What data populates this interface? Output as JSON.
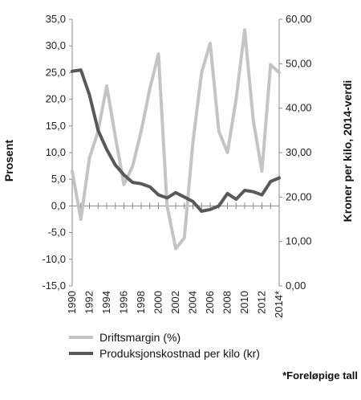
{
  "chart_data": {
    "type": "line",
    "title": "",
    "x": [
      "1990",
      "1991",
      "1992",
      "1993",
      "1994",
      "1995",
      "1996",
      "1997",
      "1998",
      "1999",
      "2000",
      "2001",
      "2002",
      "2003",
      "2004",
      "2005",
      "2006",
      "2007",
      "2008",
      "2009",
      "2010",
      "2011",
      "2012",
      "2013",
      "2014*"
    ],
    "x_tick_labels": [
      "1990",
      "1992",
      "1994",
      "1996",
      "1998",
      "2000",
      "2002",
      "2004",
      "2006",
      "2008",
      "2010",
      "2012",
      "2014*"
    ],
    "y_left": {
      "label": "Prosent",
      "lim": [
        -15,
        35
      ],
      "ticks": [
        "-15,0",
        "-10,0",
        "-5,0",
        "0,0",
        "5,0",
        "10,0",
        "15,0",
        "20,0",
        "25,0",
        "30,0",
        "35,0"
      ]
    },
    "y_right": {
      "label": "Kroner per kilo, 2014-verdi",
      "lim": [
        0,
        60
      ],
      "ticks": [
        "0,00",
        "10,00",
        "20,00",
        "30,00",
        "40,00",
        "50,00",
        "60,00"
      ]
    },
    "grid": false,
    "legend_placement": "bottom",
    "series": [
      {
        "name": "Driftsmargin (%)",
        "axis": "left",
        "color": "#c4c4c4",
        "values": [
          6.5,
          -2.5,
          9.0,
          14.0,
          22.5,
          13.0,
          4.0,
          7.5,
          14.0,
          22.0,
          28.5,
          0.0,
          -8.0,
          -6.0,
          12.0,
          25.0,
          30.5,
          14.0,
          10.0,
          20.0,
          33.0,
          16.0,
          6.5,
          26.5,
          25.0
        ]
      },
      {
        "name": "Produksjonskostnad per kilo (kr)",
        "axis": "right",
        "color": "#595959",
        "values": [
          48.3,
          48.6,
          43.0,
          35.0,
          30.7,
          27.2,
          25.0,
          23.3,
          23.0,
          22.3,
          20.5,
          19.8,
          21.0,
          20.0,
          19.0,
          16.8,
          17.2,
          18.0,
          20.8,
          19.5,
          21.5,
          21.2,
          20.5,
          23.5,
          24.3
        ]
      }
    ],
    "footnote": "*Foreløpige tall"
  }
}
